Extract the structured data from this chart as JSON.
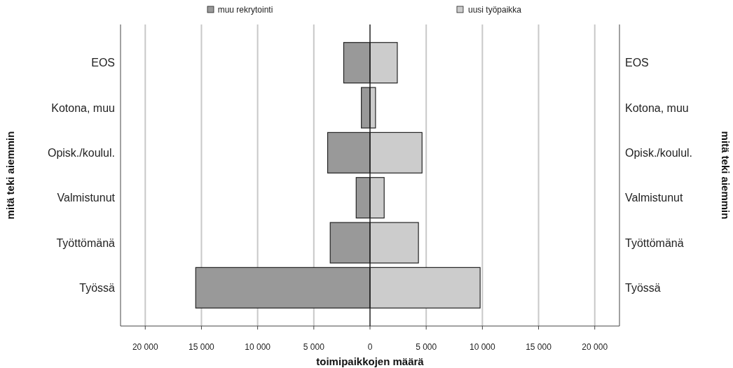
{
  "chart_data": {
    "type": "bar",
    "orientation": "horizontal",
    "xlabel": "toimipaikkojen määrä",
    "ylabel": "mitä teki aiemmin",
    "annotations": [
      "mitä teki aiemmin"
    ],
    "categories": [
      "EOS",
      "Kotona, muu",
      "Opisk./koulul.",
      "Valmistunut",
      "Työttömänä",
      "Työssä"
    ],
    "series": [
      {
        "name": "muu rekrytointi",
        "color": "#999999",
        "values": [
          -2340,
          -770,
          -3770,
          -1230,
          -3540,
          -15510
        ]
      },
      {
        "name": "uusi työpaikka",
        "color": "#cccccc",
        "values": [
          2430,
          490,
          4630,
          1260,
          4310,
          9800
        ]
      }
    ],
    "xlim": [
      -22200,
      22200
    ],
    "xticks": [
      {
        "value": -20000,
        "label": "20 000"
      },
      {
        "value": -15000,
        "label": "15 000"
      },
      {
        "value": -10000,
        "label": "10 000"
      },
      {
        "value": -5000,
        "label": "5 000"
      },
      0,
      {
        "value": 5000,
        "label": "5 000"
      },
      {
        "value": 10000,
        "label": "10 000"
      },
      {
        "value": 15000,
        "label": "15 000"
      },
      {
        "value": 20000,
        "label": "20 000"
      }
    ],
    "grid": "x",
    "legend": "top",
    "stacked": true
  }
}
